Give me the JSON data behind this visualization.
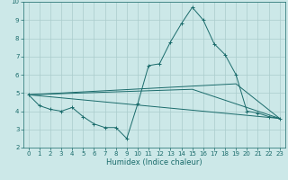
{
  "xlabel": "Humidex (Indice chaleur)",
  "background_color": "#cce8e8",
  "grid_color": "#aacccc",
  "line_color": "#1a6b6b",
  "xlim": [
    -0.5,
    23.5
  ],
  "ylim": [
    2,
    10
  ],
  "xticks": [
    0,
    1,
    2,
    3,
    4,
    5,
    6,
    7,
    8,
    9,
    10,
    11,
    12,
    13,
    14,
    15,
    16,
    17,
    18,
    19,
    20,
    21,
    22,
    23
  ],
  "yticks": [
    2,
    3,
    4,
    5,
    6,
    7,
    8,
    9,
    10
  ],
  "series": [
    {
      "x": [
        0,
        1,
        2,
        3,
        4,
        5,
        6,
        7,
        8,
        9,
        10,
        11,
        12,
        13,
        14,
        15,
        16,
        17,
        18,
        19,
        20,
        21,
        22,
        23
      ],
      "y": [
        4.9,
        4.3,
        4.1,
        4.0,
        4.2,
        3.7,
        3.3,
        3.1,
        3.1,
        2.5,
        4.4,
        6.5,
        6.6,
        7.8,
        8.8,
        9.7,
        9.0,
        7.7,
        7.1,
        6.0,
        4.0,
        3.9,
        3.7,
        3.6
      ],
      "marker": true
    },
    {
      "x": [
        0,
        23
      ],
      "y": [
        4.9,
        3.6
      ],
      "marker": false
    },
    {
      "x": [
        0,
        15,
        23
      ],
      "y": [
        4.9,
        5.2,
        3.6
      ],
      "marker": false
    },
    {
      "x": [
        0,
        19,
        23
      ],
      "y": [
        4.9,
        5.5,
        3.6
      ],
      "marker": false
    }
  ]
}
